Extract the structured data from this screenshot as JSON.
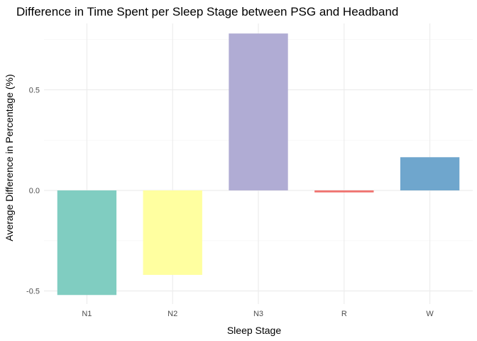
{
  "chart_data": {
    "type": "bar",
    "title": "Difference in Time Spent per Sleep Stage between PSG and Headband",
    "xlabel": "Sleep Stage",
    "ylabel": "Average Difference in Percentage (%)",
    "categories": [
      "N1",
      "N2",
      "N3",
      "R",
      "W"
    ],
    "values": [
      -0.52,
      -0.42,
      0.78,
      -0.01,
      0.165
    ],
    "colors": [
      "#80cdc1",
      "#ffffa0",
      "#b0acd4",
      "#f07470",
      "#6fa6cd"
    ],
    "yticks": [
      -0.5,
      0.0,
      0.5
    ],
    "ytick_labels": [
      "-0.5",
      "0.0",
      "0.5"
    ],
    "ylim": [
      -0.565,
      0.83
    ],
    "grid": true,
    "legend": "none"
  }
}
